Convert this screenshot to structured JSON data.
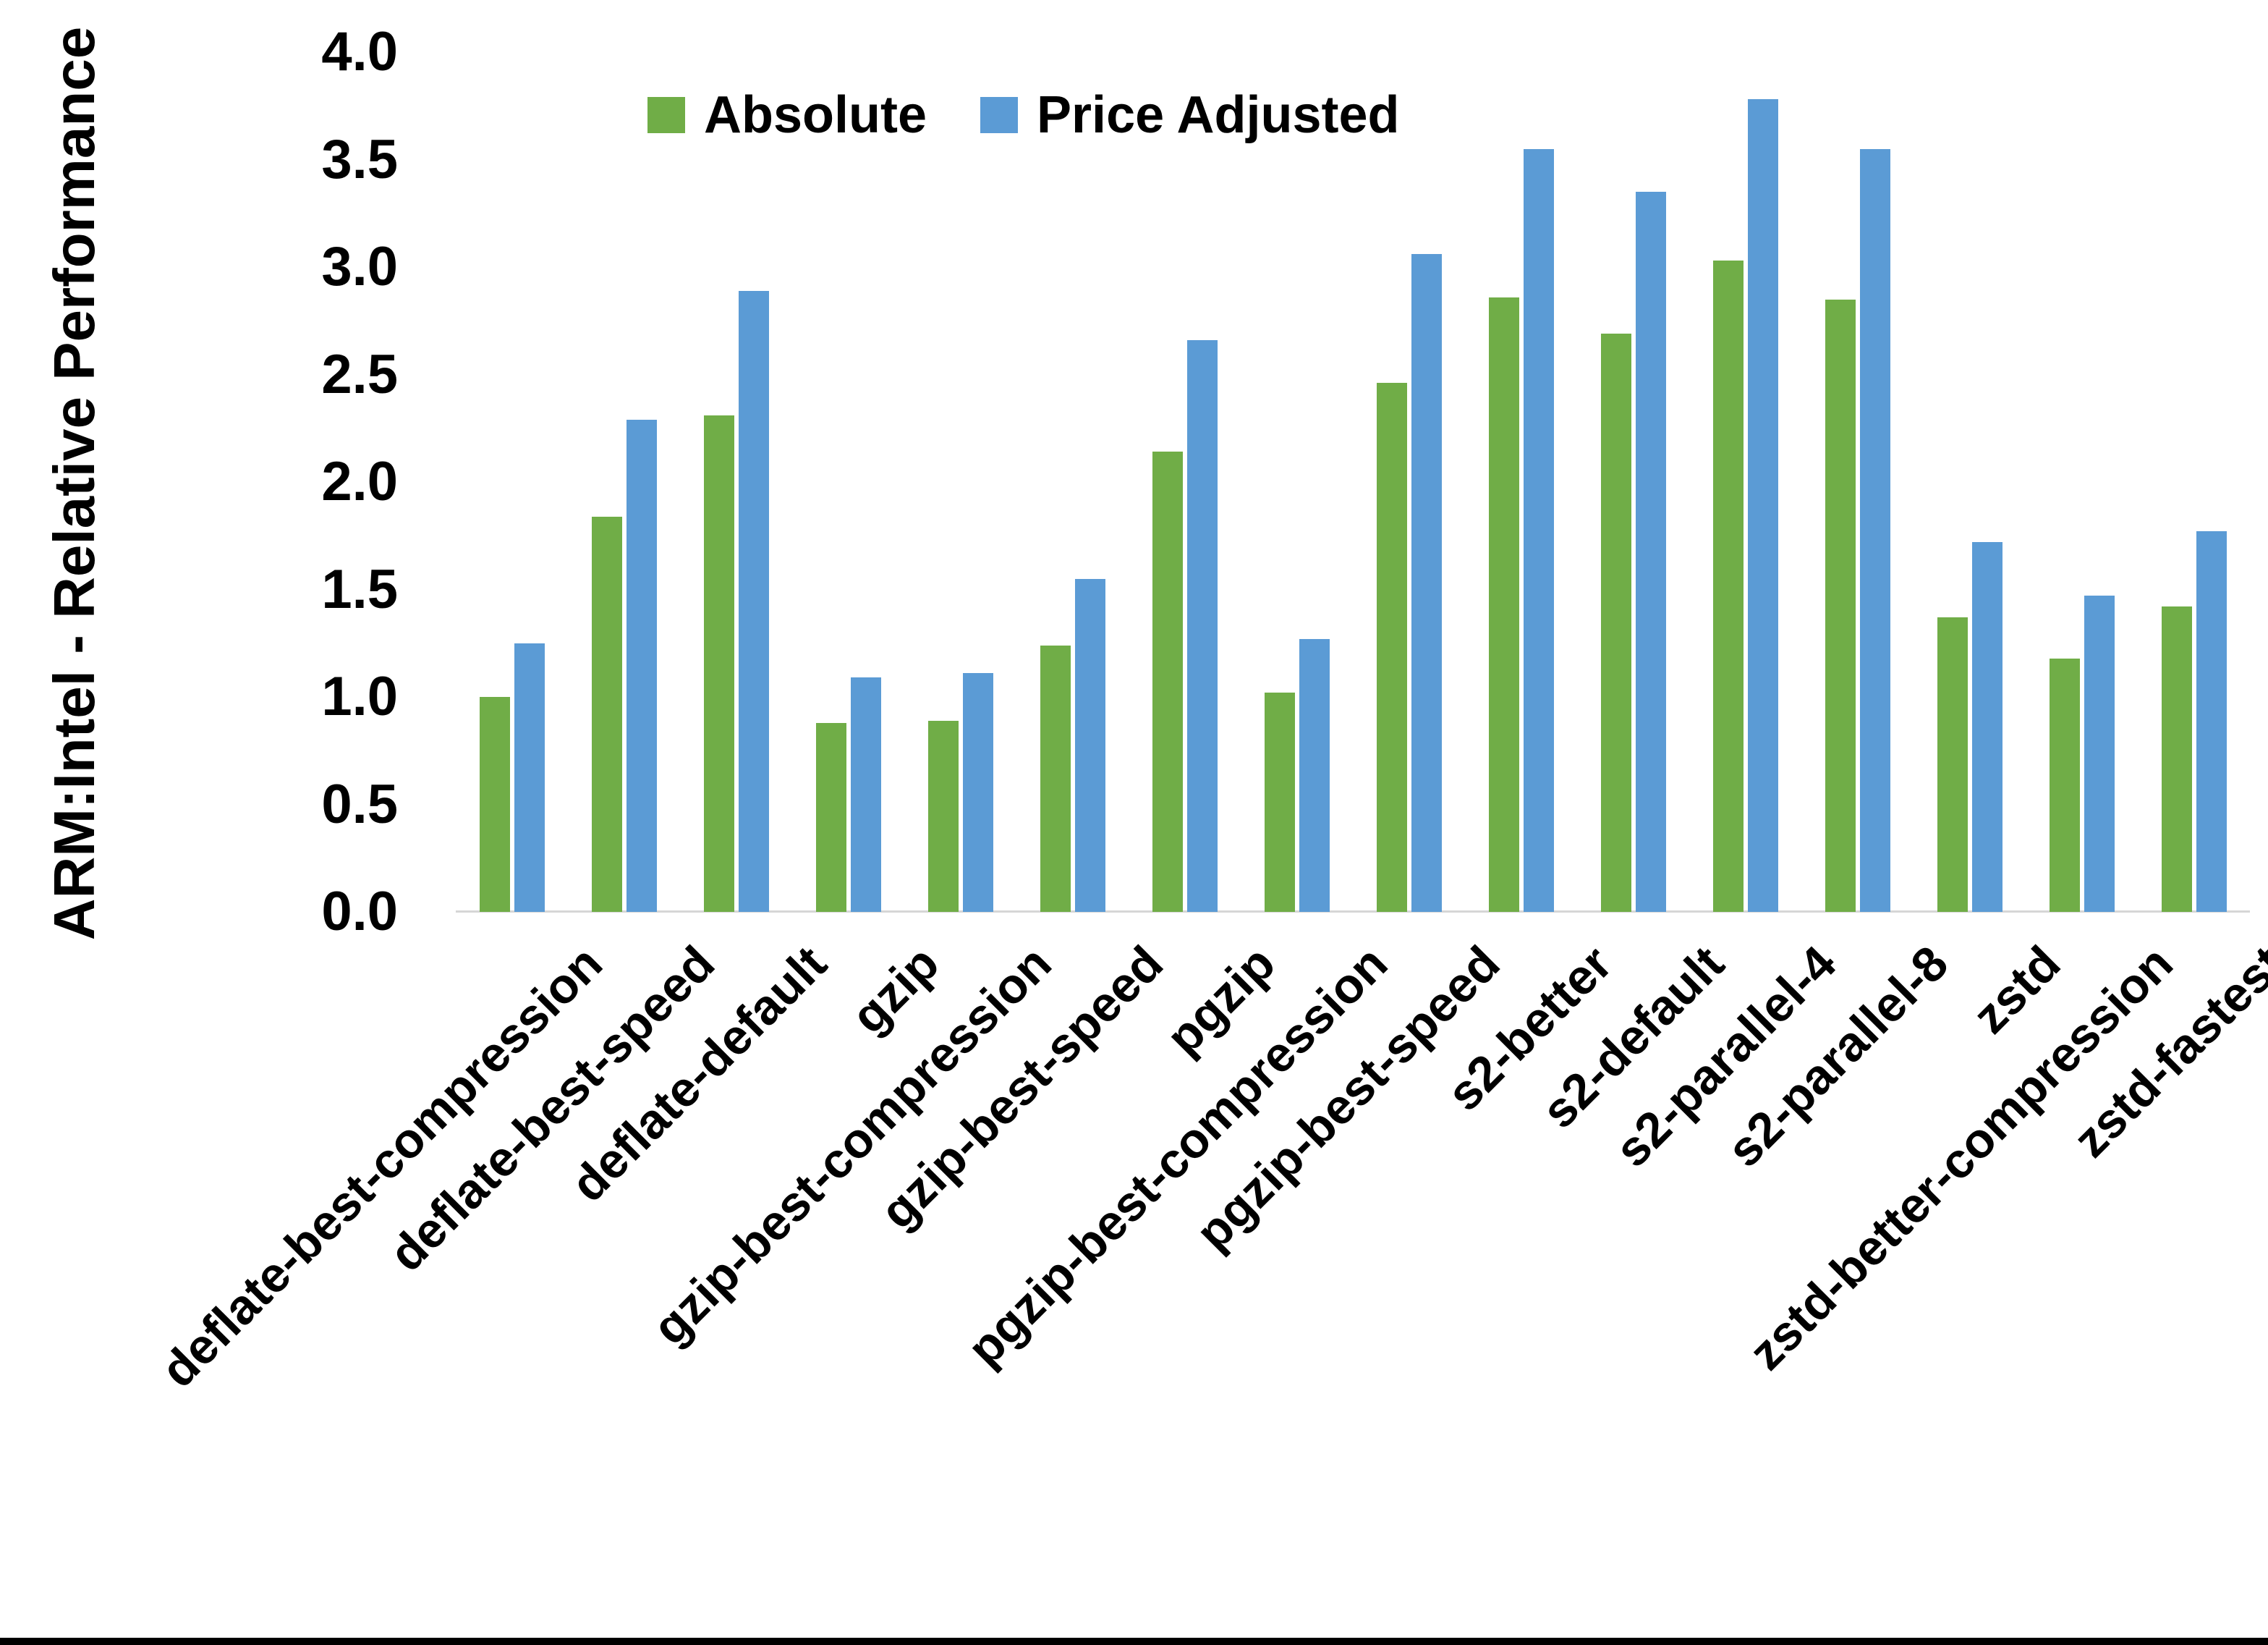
{
  "chart_data": {
    "type": "bar",
    "title": "",
    "xlabel": "",
    "ylabel": "ARM:Intel - Relative Performance",
    "ylim": [
      0.0,
      4.0
    ],
    "ytick_step": 0.5,
    "grid": false,
    "legend_position": "top-center",
    "categories": [
      "deflate-best-compression",
      "deflate-best-speed",
      "deflate-default",
      "gzip",
      "gzip-best-compression",
      "gzip-best-speed",
      "pgzip",
      "pgzip-best-compression",
      "pgzip-best-speed",
      "s2-better",
      "s2-default",
      "s2-parallel-4",
      "s2-parallel-8",
      "zstd",
      "zstd-better-compression",
      "zstd-fastest"
    ],
    "series": [
      {
        "name": "Absolute",
        "color": "#70AD47",
        "values": [
          1.0,
          1.84,
          2.31,
          0.88,
          0.89,
          1.24,
          2.14,
          1.02,
          2.46,
          2.86,
          2.69,
          3.03,
          2.85,
          1.37,
          1.18,
          1.42
        ]
      },
      {
        "name": "Price Adjusted",
        "color": "#5B9BD5",
        "values": [
          1.25,
          2.29,
          2.89,
          1.09,
          1.11,
          1.55,
          2.66,
          1.27,
          3.06,
          3.55,
          3.35,
          3.78,
          3.55,
          1.72,
          1.47,
          1.77
        ]
      }
    ]
  },
  "axes": {
    "y_title": "ARM:Intel - Relative Performance",
    "y_ticks": [
      "4.0",
      "3.5",
      "3.0",
      "2.5",
      "2.0",
      "1.5",
      "1.0",
      "0.5",
      "0.0"
    ]
  },
  "legend": {
    "items": [
      {
        "label": "Absolute",
        "color": "#70AD47"
      },
      {
        "label": "Price Adjusted",
        "color": "#5B9BD5"
      }
    ]
  },
  "colors": {
    "absolute": "#70AD47",
    "price_adjusted": "#5B9BD5",
    "axis_line": "#d6d6d6",
    "text": "#000000",
    "background": "#ffffff",
    "bottom_strip": "#000000"
  }
}
